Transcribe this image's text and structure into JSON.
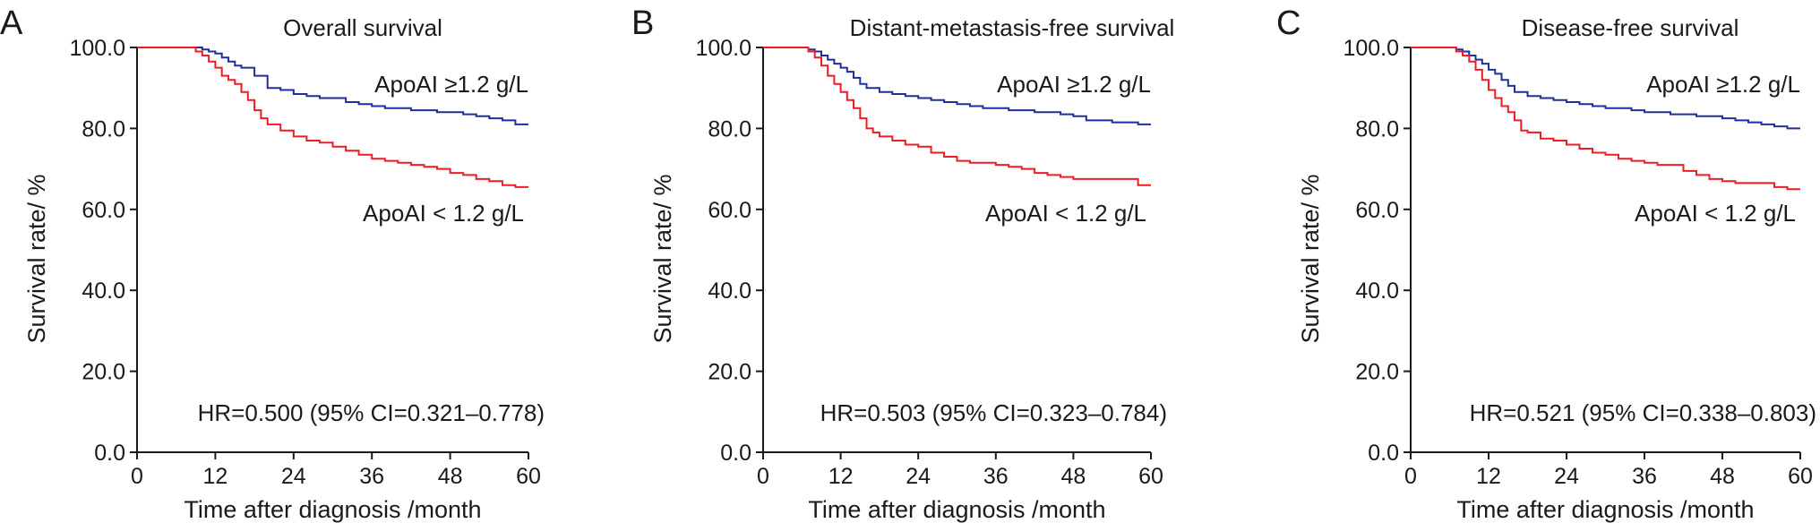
{
  "colors": {
    "high": "#1f2f9c",
    "low": "#ee1c25",
    "axis": "#1a1a1a"
  },
  "chart_data": [
    {
      "type": "line",
      "panel_label": "A",
      "title": "Overall survival",
      "xlabel": "Time after diagnosis /month",
      "ylabel": "Survival rate/ %",
      "xlim": [
        0,
        60
      ],
      "ylim": [
        0,
        100
      ],
      "x_ticks": [
        0,
        12,
        24,
        36,
        48,
        60
      ],
      "y_ticks": [
        "0.0",
        "20.0",
        "40.0",
        "60.0",
        "80.0",
        "100.0"
      ],
      "annotations": {
        "high": "ApoAI ≥1.2 g/L",
        "low": "ApoAI < 1.2 g/L",
        "hr": "HR=0.500 (95% CI=0.321–0.778)"
      },
      "series": [
        {
          "name": "ApoAI ≥1.2 g/L",
          "color": "#1f2f9c",
          "x": [
            0,
            9,
            10,
            11,
            12,
            13,
            14,
            15,
            16,
            18,
            20,
            22,
            24,
            26,
            28,
            30,
            32,
            34,
            36,
            38,
            40,
            42,
            44,
            46,
            48,
            50,
            52,
            54,
            56,
            58,
            60
          ],
          "y": [
            100,
            100,
            99.5,
            99,
            98.5,
            97.5,
            96.5,
            95.5,
            95,
            93,
            90,
            89.5,
            88.5,
            88,
            87.5,
            87.5,
            86.5,
            86,
            85.5,
            85,
            85,
            84.5,
            84.5,
            84,
            84,
            83.5,
            83,
            82.5,
            82,
            81,
            81
          ]
        },
        {
          "name": "ApoAI < 1.2 g/L",
          "color": "#ee1c25",
          "x": [
            0,
            8,
            9,
            10,
            11,
            12,
            13,
            14,
            15,
            16,
            17,
            18,
            19,
            20,
            22,
            24,
            26,
            28,
            30,
            32,
            34,
            36,
            38,
            40,
            42,
            44,
            46,
            48,
            50,
            52,
            54,
            56,
            58,
            60
          ],
          "y": [
            100,
            100,
            99,
            98,
            96.5,
            95,
            93,
            92,
            91,
            89,
            87,
            84.5,
            82.5,
            81,
            79.5,
            78,
            77,
            76.5,
            75.5,
            74.5,
            73.5,
            72.5,
            72,
            71.5,
            71,
            70.5,
            70,
            69,
            68.5,
            67.5,
            67,
            66,
            65.5,
            65.5
          ]
        }
      ]
    },
    {
      "type": "line",
      "panel_label": "B",
      "title": "Distant-metastasis-free survival",
      "xlabel": "Time after diagnosis /month",
      "ylabel": "Survival rate/ %",
      "xlim": [
        0,
        60
      ],
      "ylim": [
        0,
        100
      ],
      "x_ticks": [
        0,
        12,
        24,
        36,
        48,
        60
      ],
      "y_ticks": [
        "0.0",
        "20.0",
        "40.0",
        "60.0",
        "80.0",
        "100.0"
      ],
      "annotations": {
        "high": "ApoAI ≥1.2 g/L",
        "low": "ApoAI < 1.2 g/L",
        "hr": "HR=0.503 (95% CI=0.323–0.784)"
      },
      "series": [
        {
          "name": "ApoAI ≥1.2 g/L",
          "color": "#1f2f9c",
          "x": [
            0,
            6,
            7,
            8,
            9,
            10,
            11,
            12,
            13,
            14,
            15,
            16,
            18,
            20,
            22,
            24,
            26,
            28,
            30,
            32,
            34,
            36,
            38,
            40,
            42,
            44,
            46,
            48,
            50,
            52,
            54,
            56,
            58,
            60
          ],
          "y": [
            100,
            100,
            99.5,
            99,
            98,
            97,
            96,
            95,
            94,
            92.5,
            91,
            90,
            89,
            88.5,
            88,
            87.5,
            87,
            86.5,
            86,
            85.5,
            85,
            85,
            84.5,
            84.5,
            84,
            84,
            83.5,
            83,
            82,
            82,
            81.5,
            81.5,
            81,
            81
          ]
        },
        {
          "name": "ApoAI < 1.2 g/L",
          "color": "#ee1c25",
          "x": [
            0,
            6,
            7,
            8,
            9,
            10,
            11,
            12,
            13,
            14,
            15,
            16,
            17,
            18,
            20,
            22,
            24,
            26,
            28,
            30,
            32,
            34,
            36,
            38,
            40,
            42,
            44,
            46,
            48,
            50,
            52,
            54,
            56,
            58,
            60
          ],
          "y": [
            100,
            100,
            99,
            97.5,
            95.5,
            93,
            91,
            89,
            87,
            85,
            82.5,
            80,
            79,
            78,
            77,
            76,
            75.5,
            74,
            73,
            72,
            71.5,
            71.5,
            71,
            70.5,
            70,
            69,
            68.5,
            68,
            67.5,
            67.5,
            67.5,
            67.5,
            67.5,
            66,
            66
          ]
        }
      ]
    },
    {
      "type": "line",
      "panel_label": "C",
      "title": "Disease-free survival",
      "xlabel": "Time after diagnosis /month",
      "ylabel": "Survival rate/ %",
      "xlim": [
        0,
        60
      ],
      "ylim": [
        0,
        100
      ],
      "x_ticks": [
        0,
        12,
        24,
        36,
        48,
        60
      ],
      "y_ticks": [
        "0.0",
        "20.0",
        "40.0",
        "60.0",
        "80.0",
        "100.0"
      ],
      "annotations": {
        "high": "ApoAI ≥1.2 g/L",
        "low": "ApoAI < 1.2 g/L",
        "hr": "HR=0.521 (95% CI=0.338–0.803)"
      },
      "series": [
        {
          "name": "ApoAI ≥1.2 g/L",
          "color": "#1f2f9c",
          "x": [
            0,
            6,
            7,
            8,
            9,
            10,
            11,
            12,
            13,
            14,
            15,
            16,
            18,
            20,
            22,
            24,
            26,
            28,
            30,
            32,
            34,
            36,
            38,
            40,
            42,
            44,
            46,
            48,
            50,
            52,
            54,
            56,
            58,
            60
          ],
          "y": [
            100,
            100,
            99.5,
            99,
            98,
            97,
            96,
            94.5,
            93.5,
            92,
            90.5,
            89,
            88,
            87.5,
            87,
            86.5,
            86,
            85.5,
            85,
            85,
            84.5,
            84,
            84,
            83.5,
            83.5,
            83,
            83,
            82.5,
            82,
            81.5,
            81,
            80.5,
            80,
            80
          ]
        },
        {
          "name": "ApoAI < 1.2 g/L",
          "color": "#ee1c25",
          "x": [
            0,
            6,
            7,
            8,
            9,
            10,
            11,
            12,
            13,
            14,
            15,
            16,
            17,
            18,
            20,
            22,
            24,
            26,
            28,
            30,
            32,
            34,
            36,
            38,
            40,
            42,
            44,
            46,
            48,
            50,
            52,
            54,
            56,
            58,
            60
          ],
          "y": [
            100,
            100,
            99,
            98,
            96.5,
            94.5,
            92,
            89.5,
            87.5,
            85.5,
            84,
            82,
            79.5,
            79,
            77.5,
            77,
            76,
            75,
            74,
            73.5,
            72.5,
            72,
            71.5,
            71,
            71,
            69.5,
            68.5,
            67.5,
            67,
            66.5,
            66.5,
            66.5,
            65.5,
            65,
            65
          ]
        }
      ]
    }
  ]
}
